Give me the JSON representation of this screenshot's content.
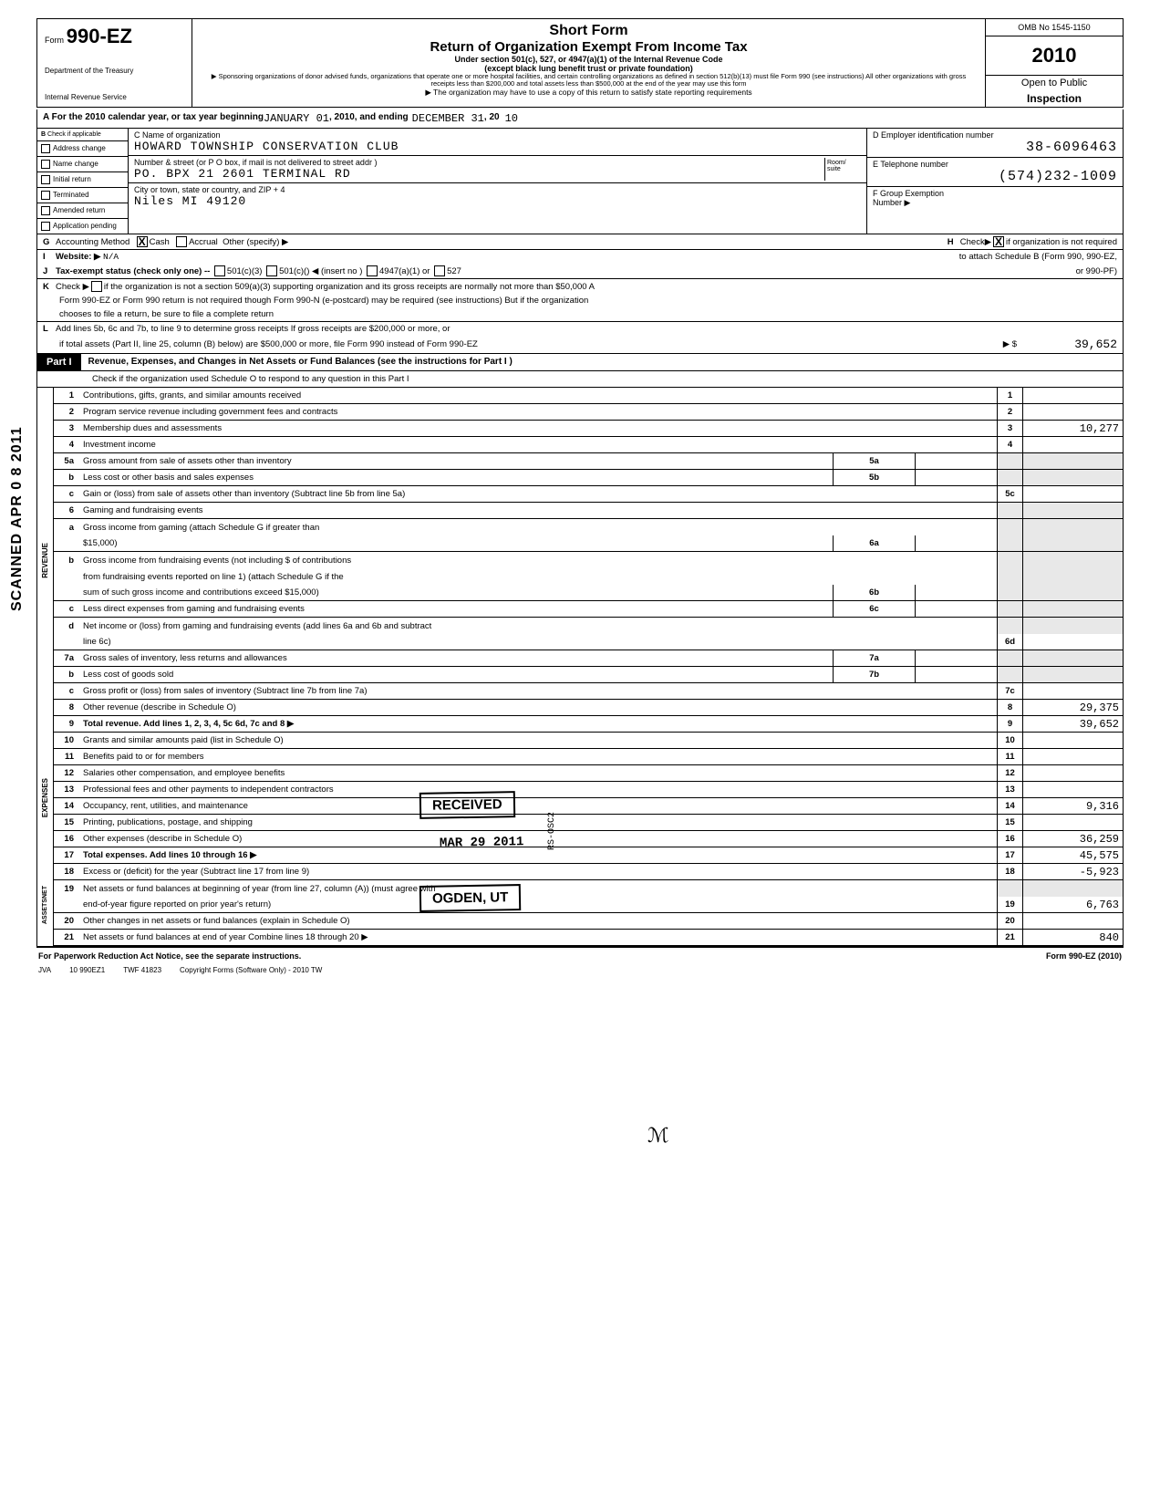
{
  "form": {
    "number_prefix": "Form",
    "number": "990-EZ",
    "dept1": "Department of the Treasury",
    "dept2": "Internal Revenue Service",
    "short_form": "Short Form",
    "title": "Return of Organization Exempt From Income Tax",
    "sub1": "Under section 501(c), 527, or 4947(a)(1) of the Internal Revenue Code",
    "sub2": "(except black lung benefit trust or private foundation)",
    "tiny1": "▶ Sponsoring organizations of donor advised funds, organizations that operate one or more hospital facilities, and certain controlling organizations as defined in section 512(b)(13) must file Form 990 (see instructions) All other organizations with gross receipts less than $200,000 and total assets less than $500,000 at the end of the year may use this form",
    "tiny2": "▶ The organization may have to use a copy of this return to satisfy state reporting requirements",
    "omb": "OMB No 1545-1150",
    "year": "2010",
    "open": "Open to Public",
    "inspection": "Inspection"
  },
  "lineA": {
    "prefix": "A  For the 2010 calendar year, or tax year beginning",
    "begin": "JANUARY  01",
    "mid": ", 2010, and ending",
    "end": "DECEMBER  31",
    "suffix": ", 20",
    "yr": "10"
  },
  "colB": {
    "header": "Check if applicable",
    "items": [
      "Address change",
      "Name change",
      "Initial return",
      "Terminated",
      "Amended return",
      "Application pending"
    ],
    "letter": "B"
  },
  "colC": {
    "label1": "C  Name of organization",
    "val1": "HOWARD TOWNSHIP CONSERVATION CLUB",
    "label2": "Number & street (or P O  box, if mail is not delivered to street addr )",
    "room": "Room/ suite",
    "val2": "PO. BPX 21 2601 TERMINAL RD",
    "label3": "City or town, state or country, and ZIP + 4",
    "val3": "Niles MI 49120"
  },
  "colDEF": {
    "d_label": "D   Employer identification number",
    "d_val": "38-6096463",
    "e_label": "E   Telephone number",
    "e_val": "(574)232-1009",
    "f_label": "F   Group Exemption",
    "f_label2": "Number          ▶"
  },
  "lineG": {
    "letter": "G",
    "text": "Accounting Method",
    "cash": "Cash",
    "accrual": "Accrual",
    "other": "Other (specify) ▶"
  },
  "lineH": {
    "letter": "H",
    "text1": "Check▶",
    "text2": "if organization is not required",
    "text3": "to attach Schedule B (Form 990, 990-EZ,",
    "text4": "or 990-PF)"
  },
  "lineI": {
    "letter": "I",
    "text": "Website: ▶",
    "val": "N/A"
  },
  "lineJ": {
    "letter": "J",
    "text": "Tax-exempt status (check only one) --",
    "o1": "501(c)(3)",
    "o2": "501(c)(",
    "o2b": ") ◀ (insert no )",
    "o3": "4947(a)(1) or",
    "o4": "527"
  },
  "lineK": {
    "letter": "K",
    "text1": "Check ▶",
    "text2": "if the organization is not a section 509(a)(3) supporting organization and its gross receipts are normally not more than $50,000  A",
    "text3": "Form 990-EZ or Form 990 return is not required though Form 990-N (e-postcard) may be required (see instructions)  But if the organization",
    "text4": "chooses to file a return, be sure to file a complete return"
  },
  "lineL": {
    "letter": "L",
    "text1": "Add lines 5b, 6c  and 7b, to line 9 to determine gross receipts  If gross receipts are $200,000 or more, or",
    "text2": "if total assets (Part II, line 25, column (B) below) are $500,000 or more, file Form 990 instead of Form 990-EZ",
    "arrow": "▶  $",
    "val": "39,652"
  },
  "part1": {
    "label": "Part I",
    "title": "Revenue, Expenses, and Changes in Net Assets or Fund Balances (see the instructions for Part I )",
    "sub": "Check if the organization used Schedule O to respond to any question in this Part I"
  },
  "rows": [
    {
      "n": "1",
      "d": "Contributions, gifts, grants, and similar amounts received",
      "rn": "1",
      "v": ""
    },
    {
      "n": "2",
      "d": "Program service revenue including government fees and contracts",
      "rn": "2",
      "v": ""
    },
    {
      "n": "3",
      "d": "Membership dues and assessments",
      "rn": "3",
      "v": "10,277"
    },
    {
      "n": "4",
      "d": "Investment income",
      "rn": "4",
      "v": ""
    },
    {
      "n": "5a",
      "d": "Gross amount from sale of assets other than inventory",
      "in": "5a",
      "rn": "",
      "v": "",
      "shade": true
    },
    {
      "n": "b",
      "d": "Less  cost or other basis and sales expenses",
      "in": "5b",
      "rn": "",
      "v": "",
      "shade": true
    },
    {
      "n": "c",
      "d": "Gain or (loss) from sale of assets other than inventory (Subtract line 5b from line 5a)",
      "rn": "5c",
      "v": ""
    },
    {
      "n": "6",
      "d": "Gaming and fundraising events",
      "rn": "",
      "v": "",
      "shade": true
    },
    {
      "n": "a",
      "d": "Gross income from gaming (attach Schedule G if greater than",
      "rn": "",
      "v": "",
      "shade": true,
      "noborder": true
    },
    {
      "n": "",
      "d": "$15,000)",
      "in": "6a",
      "rn": "",
      "v": "",
      "shade": true
    },
    {
      "n": "b",
      "d": "Gross income from fundraising events (not including $                          of contributions",
      "rn": "",
      "v": "",
      "shade": true,
      "noborder": true
    },
    {
      "n": "",
      "d": "from fundraising events reported on line 1) (attach Schedule G if the",
      "rn": "",
      "v": "",
      "shade": true,
      "noborder": true
    },
    {
      "n": "",
      "d": "sum of such gross income and contributions exceed $15,000)",
      "in": "6b",
      "rn": "",
      "v": "",
      "shade": true
    },
    {
      "n": "c",
      "d": "Less  direct expenses from gaming and fundraising events",
      "in": "6c",
      "rn": "",
      "v": "",
      "shade": true
    },
    {
      "n": "d",
      "d": "Net income or (loss) from gaming and fundraising events (add lines 6a and 6b and subtract",
      "rn": "",
      "v": "",
      "shade": true,
      "noborder": true
    },
    {
      "n": "",
      "d": "line 6c)",
      "rn": "6d",
      "v": ""
    },
    {
      "n": "7a",
      "d": "Gross sales of inventory, less returns and allowances",
      "in": "7a",
      "rn": "",
      "v": "",
      "shade": true
    },
    {
      "n": "b",
      "d": "Less  cost of goods sold",
      "in": "7b",
      "rn": "",
      "v": "",
      "shade": true
    },
    {
      "n": "c",
      "d": "Gross profit or (loss) from sales of inventory (Subtract line 7b from line 7a)",
      "rn": "7c",
      "v": ""
    },
    {
      "n": "8",
      "d": "Other revenue (describe in Schedule O)",
      "rn": "8",
      "v": "29,375"
    },
    {
      "n": "9",
      "d": "Total revenue. Add lines 1, 2, 3, 4, 5c  6d, 7c  and 8                                                                           ▶",
      "rn": "9",
      "v": "39,652",
      "bold": true
    }
  ],
  "exp_rows": [
    {
      "n": "10",
      "d": "Grants and similar amounts paid (list in Schedule O)",
      "rn": "10",
      "v": ""
    },
    {
      "n": "11",
      "d": "Benefits paid to or for members",
      "rn": "11",
      "v": ""
    },
    {
      "n": "12",
      "d": "Salaries  other compensation, and employee benefits",
      "rn": "12",
      "v": ""
    },
    {
      "n": "13",
      "d": "Professional fees and other payments to independent contractors",
      "rn": "13",
      "v": ""
    },
    {
      "n": "14",
      "d": "Occupancy, rent, utilities, and maintenance",
      "rn": "14",
      "v": "9,316"
    },
    {
      "n": "15",
      "d": "Printing, publications, postage, and shipping",
      "rn": "15",
      "v": ""
    },
    {
      "n": "16",
      "d": "Other expenses (describe in Schedule O)",
      "rn": "16",
      "v": "36,259"
    },
    {
      "n": "17",
      "d": "Total expenses. Add lines 10 through 16                                                                                       ▶",
      "rn": "17",
      "v": "45,575",
      "bold": true
    }
  ],
  "na_rows": [
    {
      "n": "18",
      "d": "Excess or (deficit) for the year (Subtract line 17 from line 9)",
      "rn": "18",
      "v": "-5,923"
    },
    {
      "n": "19",
      "d": "Net assets or fund balances at beginning of year (from line 27, column (A)) (must agree with",
      "rn": "",
      "v": "",
      "shade": true,
      "noborder": true
    },
    {
      "n": "",
      "d": "end-of-year figure reported on prior year's return)",
      "rn": "19",
      "v": "6,763"
    },
    {
      "n": "20",
      "d": "Other changes in net assets or fund balances (explain in Schedule O)",
      "rn": "20",
      "v": ""
    },
    {
      "n": "21",
      "d": "Net assets or fund balances at end of year  Combine lines 18 through 20                                          ▶",
      "rn": "21",
      "v": "840"
    }
  ],
  "side_labels": {
    "rev": "REVENUE",
    "exp": "EXPENSES",
    "na1": "NET",
    "na2": "ASSETS"
  },
  "footer": {
    "left": "For Paperwork Reduction Act Notice, see the separate instructions.",
    "right": "Form 990-EZ (2010)",
    "jva": "JVA",
    "code": "10  990EZ1",
    "twf": "TWF 41823",
    "copy": "Copyright Forms (Software Only) - 2010 TW"
  },
  "stamps": {
    "received": "RECEIVED",
    "date": "MAR 29 2011",
    "ogden": "OGDEN, UT",
    "side": "RS-OSC2"
  },
  "scanned": "SCANNED APR 0 8 2011"
}
